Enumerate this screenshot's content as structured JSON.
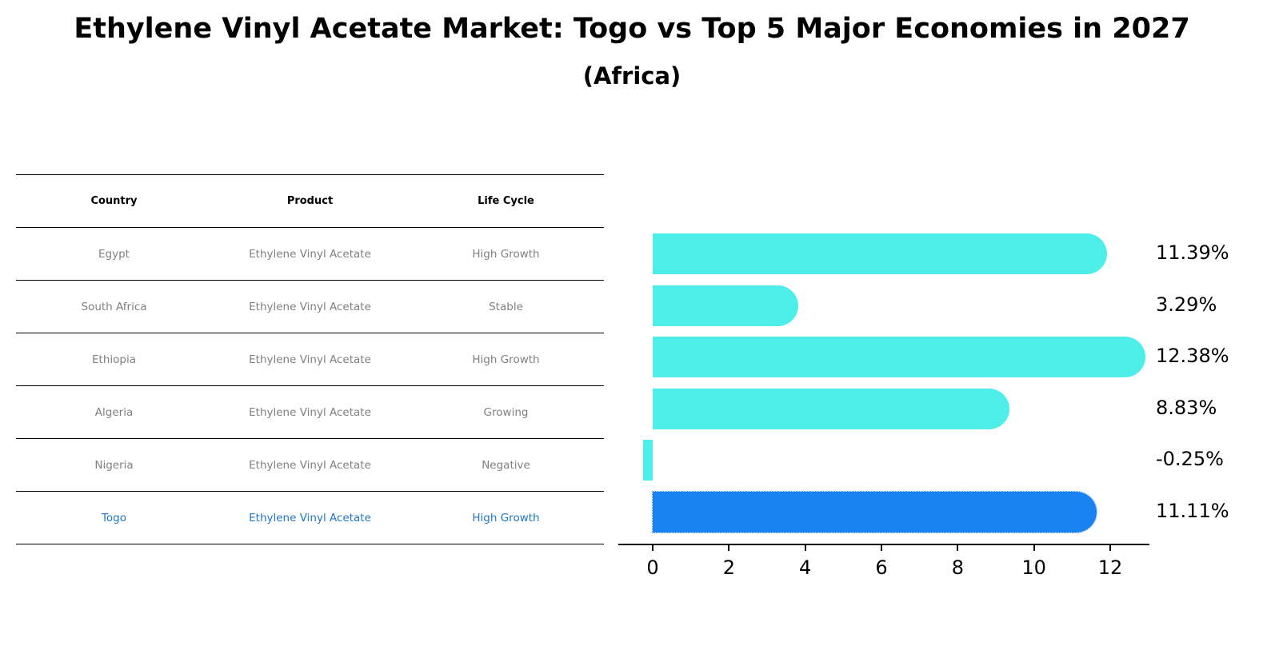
{
  "title": "Ethylene Vinyl Acetate Market: Togo vs Top 5 Major Economies in 2027",
  "subtitle": "(Africa)",
  "table": {
    "headers": [
      "Country",
      "Product",
      "Life Cycle"
    ],
    "rows": [
      {
        "country": "Egypt",
        "product": "Ethylene Vinyl Acetate",
        "life_cycle": "High Growth"
      },
      {
        "country": "South Africa",
        "product": "Ethylene Vinyl Acetate",
        "life_cycle": "Stable"
      },
      {
        "country": "Ethiopia",
        "product": "Ethylene Vinyl Acetate",
        "life_cycle": "High Growth"
      },
      {
        "country": "Algeria",
        "product": "Ethylene Vinyl Acetate",
        "life_cycle": "Growing"
      },
      {
        "country": "Nigeria",
        "product": "Ethylene Vinyl Acetate",
        "life_cycle": "Negative"
      },
      {
        "country": "Togo",
        "product": "Ethylene Vinyl Acetate",
        "life_cycle": "High Growth"
      }
    ]
  },
  "colors": {
    "bar": "#4deeea",
    "highlight": "#1982f0",
    "highlight_text": "#1f77c8",
    "muted_text": "#808080"
  },
  "chart_data": {
    "type": "bar",
    "orientation": "horizontal",
    "title": "Ethylene Vinyl Acetate Market: Togo vs Top 5 Major Economies in 2027",
    "subtitle": "(Africa)",
    "categories": [
      "Egypt",
      "South Africa",
      "Ethiopia",
      "Algeria",
      "Nigeria",
      "Togo"
    ],
    "values": [
      11.39,
      3.29,
      12.38,
      8.83,
      -0.25,
      11.11
    ],
    "labels": [
      "11.39%",
      "3.29%",
      "12.38%",
      "8.83%",
      "-0.25%",
      "11.11%"
    ],
    "highlight": "Togo",
    "xlabel": "",
    "ylabel": "",
    "xticks": [
      "0",
      "2",
      "4",
      "6",
      "8",
      "10",
      "12"
    ],
    "xlim": [
      -0.9,
      13
    ],
    "grid": false
  }
}
